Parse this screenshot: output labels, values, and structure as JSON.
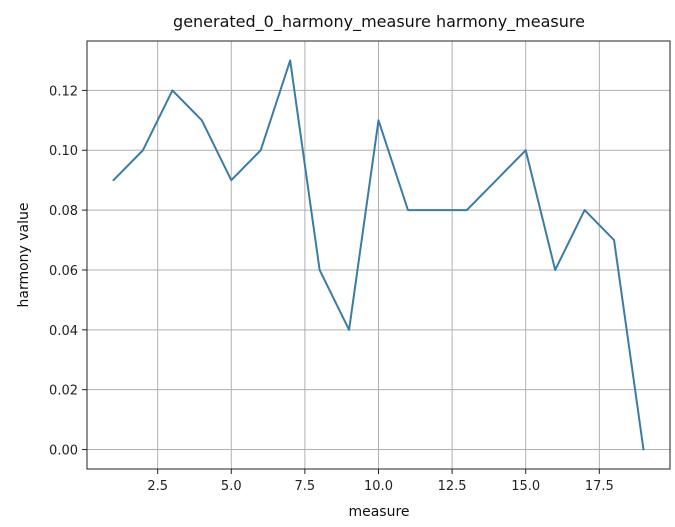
{
  "chart_data": {
    "type": "line",
    "title": "generated_0_harmony_measure harmony_measure",
    "xlabel": "measure",
    "ylabel": "harmony value",
    "xlim": [
      0.1,
      19.9
    ],
    "ylim": [
      -0.0065,
      0.1365
    ],
    "grid": true,
    "xticks": [
      2.5,
      5.0,
      7.5,
      10.0,
      12.5,
      15.0,
      17.5
    ],
    "xtick_labels": [
      "2.5",
      "5.0",
      "7.5",
      "10.0",
      "12.5",
      "15.0",
      "17.5"
    ],
    "yticks": [
      0.0,
      0.02,
      0.04,
      0.06,
      0.08,
      0.1,
      0.12
    ],
    "ytick_labels": [
      "0.00",
      "0.02",
      "0.04",
      "0.06",
      "0.08",
      "0.10",
      "0.12"
    ],
    "series": [
      {
        "color": "#3a7ca5",
        "x": [
          1,
          2,
          3,
          4,
          5,
          6,
          7,
          8,
          9,
          10,
          11,
          12,
          13,
          14,
          15,
          16,
          17,
          18,
          19
        ],
        "y": [
          0.09,
          0.1,
          0.12,
          0.11,
          0.09,
          0.1,
          0.13,
          0.06,
          0.04,
          0.11,
          0.08,
          0.08,
          0.08,
          0.09,
          0.1,
          0.06,
          0.08,
          0.07,
          0.0
        ]
      }
    ]
  }
}
